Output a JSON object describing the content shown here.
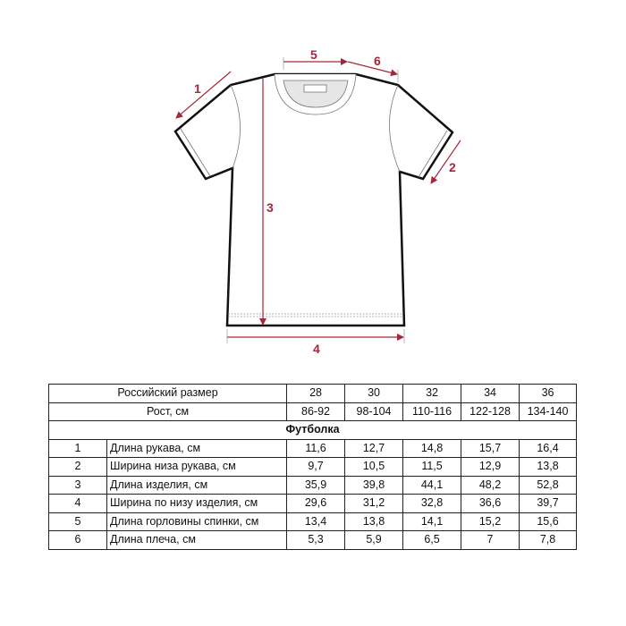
{
  "diagram": {
    "accent_color": "#a3273a",
    "measure_labels": [
      "1",
      "2",
      "3",
      "4",
      "5",
      "6"
    ]
  },
  "table": {
    "size_header": "Российский размер",
    "sizes": [
      "28",
      "30",
      "32",
      "34",
      "36"
    ],
    "height_header": "Рост, см",
    "heights": [
      "86-92",
      "98-104",
      "110-116",
      "122-128",
      "134-140"
    ],
    "section": "Футболка",
    "rows": [
      {
        "num": "1",
        "label": "Длина рукава, см",
        "values": [
          "11,6",
          "12,7",
          "14,8",
          "15,7",
          "16,4"
        ]
      },
      {
        "num": "2",
        "label": "Ширина низа рукава, см",
        "values": [
          "9,7",
          "10,5",
          "11,5",
          "12,9",
          "13,8"
        ]
      },
      {
        "num": "3",
        "label": "Длина изделия, см",
        "values": [
          "35,9",
          "39,8",
          "44,1",
          "48,2",
          "52,8"
        ]
      },
      {
        "num": "4",
        "label": "Ширина по низу изделия, см",
        "values": [
          "29,6",
          "31,2",
          "32,8",
          "36,6",
          "39,7"
        ]
      },
      {
        "num": "5",
        "label": "Длина горловины спинки, см",
        "values": [
          "13,4",
          "13,8",
          "14,1",
          "15,2",
          "15,6"
        ]
      },
      {
        "num": "6",
        "label": "Длина плеча, см",
        "values": [
          "5,3",
          "5,9",
          "6,5",
          "7",
          "7,8"
        ]
      }
    ]
  }
}
